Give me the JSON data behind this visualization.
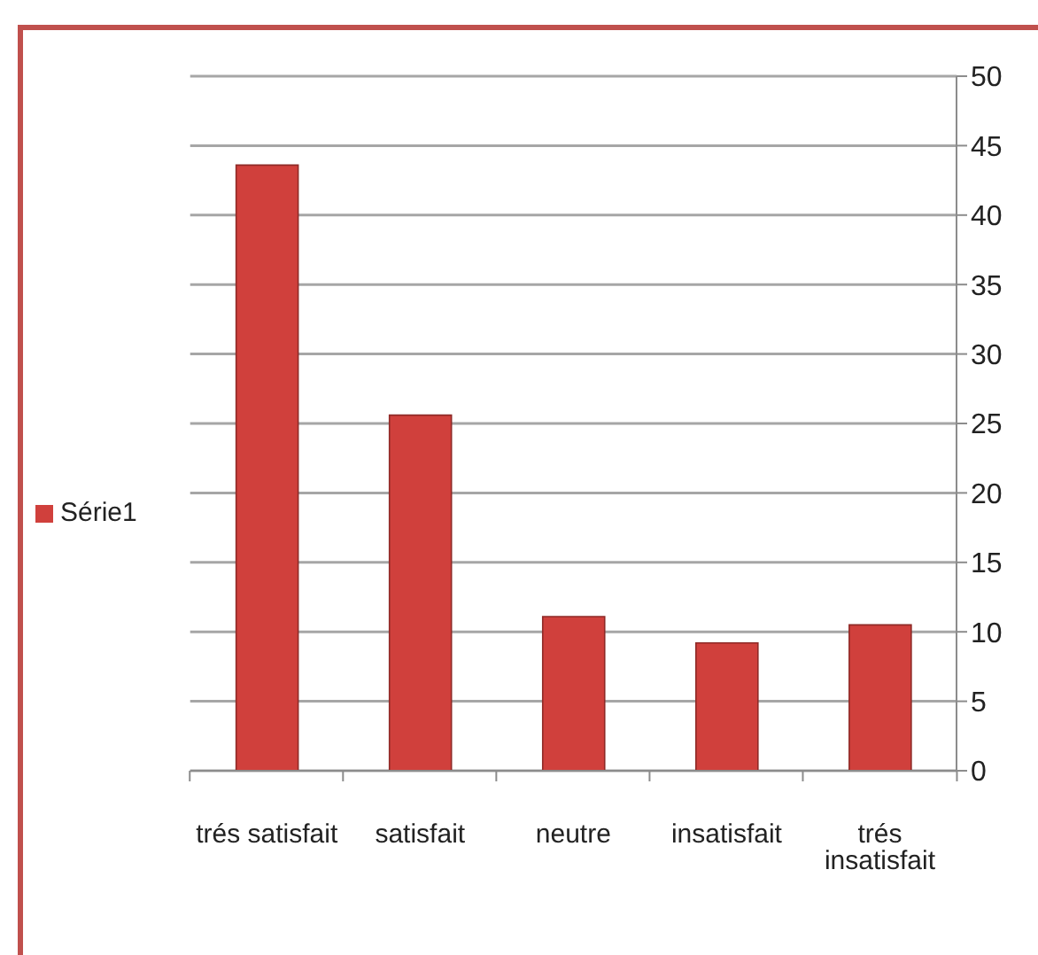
{
  "chart_data": {
    "type": "bar",
    "categories": [
      "trés satisfait",
      "satisfait",
      "neutre",
      "insatisfait",
      "trés insatisfait"
    ],
    "series": [
      {
        "name": "Série1",
        "color": "#d0403c",
        "values": [
          43.6,
          25.6,
          11.1,
          9.2,
          10.5
        ]
      }
    ],
    "ylim": [
      0,
      50
    ],
    "yticks": [
      0,
      5,
      10,
      15,
      20,
      25,
      30,
      35,
      40,
      45,
      50
    ],
    "grid": "y",
    "legend": "left"
  }
}
